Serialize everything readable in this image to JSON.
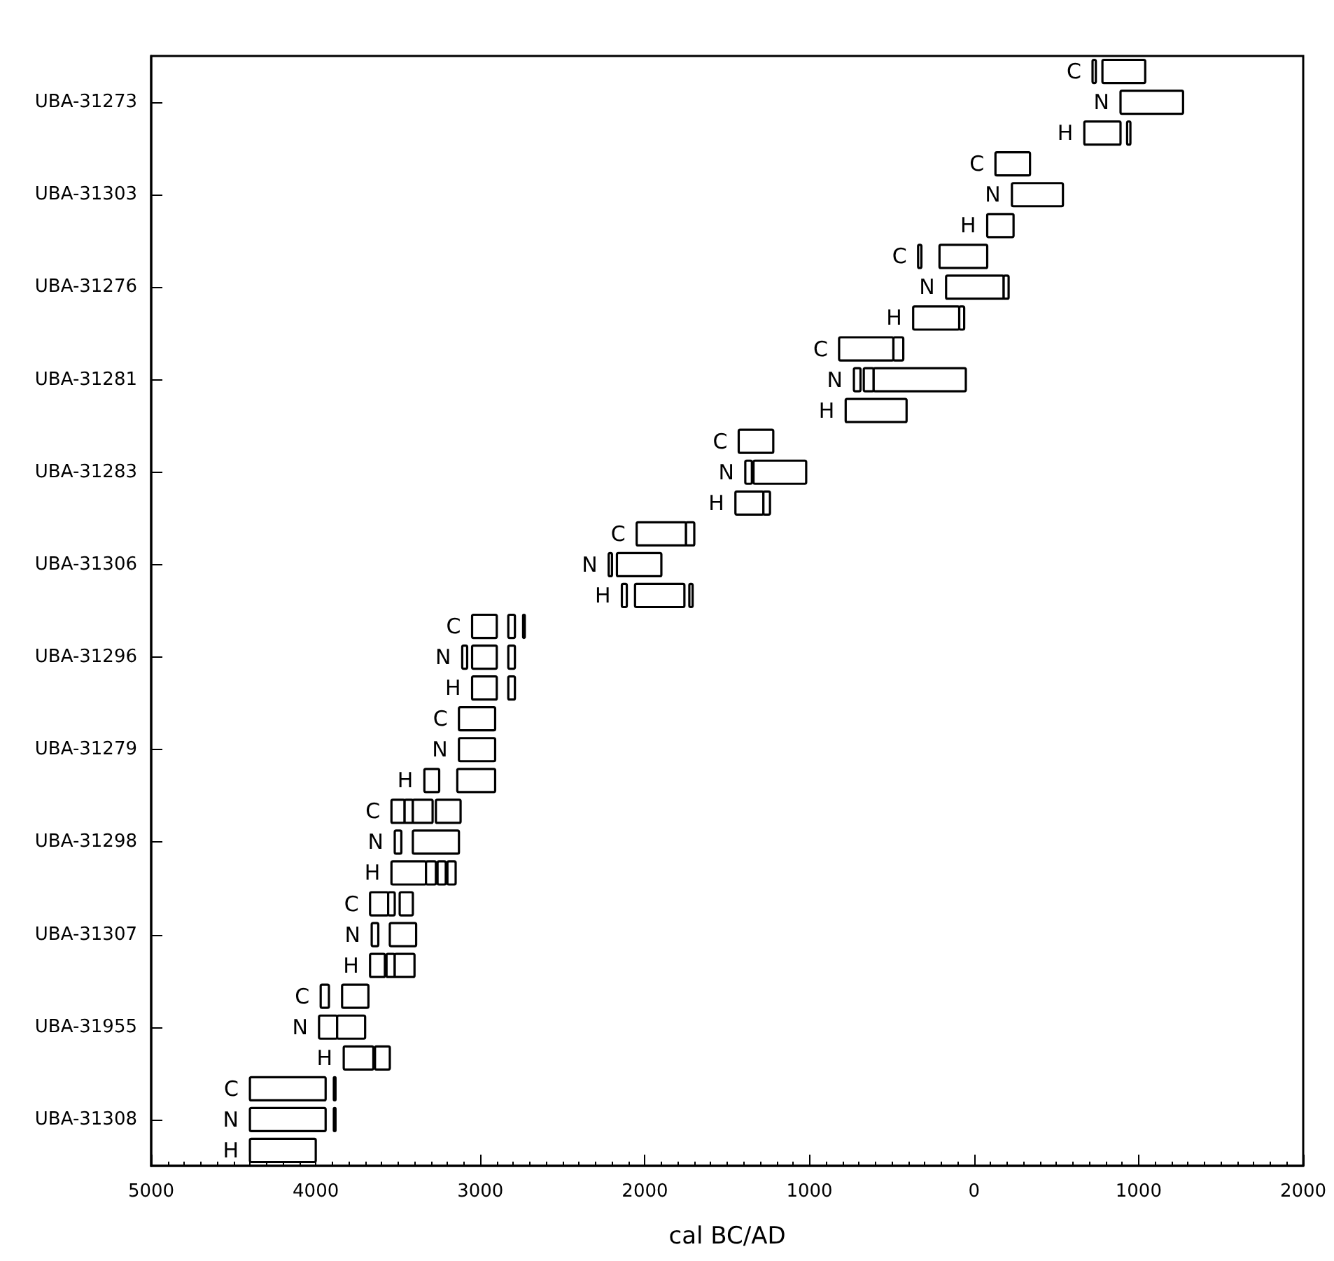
{
  "chart_data": {
    "type": "bar",
    "orientation": "horizontal",
    "xlabel": "cal BC/AD",
    "categories": [
      "UBA-31273",
      "UBA-31303",
      "UBA-31276",
      "UBA-31281",
      "UBA-31283",
      "UBA-31306",
      "UBA-31296",
      "UBA-31279",
      "UBA-31298",
      "UBA-31307",
      "UBA-31955",
      "UBA-31308"
    ],
    "xlim": [
      -5000,
      2000
    ],
    "xticks": [
      {
        "value": -5000,
        "label": "5000"
      },
      {
        "value": -4000,
        "label": "4000"
      },
      {
        "value": -3000,
        "label": "3000"
      },
      {
        "value": -2000,
        "label": "2000"
      },
      {
        "value": -1000,
        "label": "1000"
      },
      {
        "value": 0,
        "label": "0"
      },
      {
        "value": 1000,
        "label": "1000"
      },
      {
        "value": 2000,
        "label": "2000"
      }
    ],
    "series": [
      {
        "name": "C",
        "color": "#ffffff",
        "base": [
          720,
          130,
          -340,
          -820,
          -1430,
          -2050,
          -3050,
          -3130,
          -3540,
          -3670,
          -3970,
          -4400
        ],
        "values": [
          20,
          210,
          20,
          330,
          210,
          300,
          150,
          220,
          80,
          110,
          50,
          460
        ]
      },
      {
        "color": "#ffffff",
        "base": [
          780,
          null,
          -210,
          -490,
          null,
          -1750,
          -2830,
          null,
          -3460,
          -3560,
          -3840,
          -3890
        ],
        "values": [
          260,
          null,
          290,
          60,
          null,
          50,
          40,
          null,
          50,
          40,
          160,
          10
        ]
      },
      {
        "color": "#ffffff",
        "base": [
          null,
          null,
          null,
          null,
          null,
          null,
          -2740,
          null,
          -3410,
          -3490,
          null,
          null
        ],
        "values": [
          null,
          null,
          null,
          null,
          null,
          null,
          10,
          null,
          120,
          80,
          null,
          null
        ]
      },
      {
        "color": "#ffffff",
        "base": [
          null,
          null,
          null,
          null,
          null,
          null,
          null,
          null,
          -3270,
          null,
          null,
          null
        ],
        "values": [
          null,
          null,
          null,
          null,
          null,
          null,
          null,
          null,
          150,
          null,
          null,
          null
        ]
      },
      {
        "name": "N",
        "color": "#ffffff",
        "base": [
          890,
          230,
          -170,
          -730,
          -1390,
          -2220,
          -3110,
          -3130,
          -3520,
          -3660,
          -3980,
          -4400
        ],
        "values": [
          380,
          310,
          350,
          40,
          40,
          20,
          30,
          220,
          40,
          40,
          110,
          460
        ]
      },
      {
        "color": "#ffffff",
        "base": [
          null,
          null,
          180,
          -670,
          -1340,
          -2170,
          -3050,
          null,
          -3410,
          -3550,
          -3870,
          -3890
        ],
        "values": [
          null,
          null,
          30,
          60,
          320,
          270,
          150,
          null,
          280,
          160,
          170,
          10
        ]
      },
      {
        "color": "#ffffff",
        "base": [
          null,
          null,
          null,
          -610,
          null,
          null,
          -2830,
          null,
          null,
          null,
          null,
          null
        ],
        "values": [
          null,
          null,
          null,
          560,
          null,
          null,
          40,
          null,
          null,
          null,
          null,
          null
        ]
      },
      {
        "name": "H",
        "color": "#ffffff",
        "base": [
          670,
          80,
          -370,
          -780,
          -1450,
          -2140,
          -3050,
          -3340,
          -3540,
          -3670,
          -3830,
          -4400
        ],
        "values": [
          220,
          160,
          280,
          370,
          170,
          30,
          150,
          90,
          210,
          90,
          180,
          400
        ]
      },
      {
        "color": "#ffffff",
        "base": [
          930,
          null,
          -90,
          null,
          -1280,
          -2060,
          -2830,
          -3140,
          -3330,
          -3570,
          -3640,
          null
        ],
        "values": [
          20,
          null,
          30,
          null,
          40,
          300,
          40,
          230,
          60,
          50,
          90,
          null
        ]
      },
      {
        "color": "#ffffff",
        "base": [
          null,
          null,
          null,
          null,
          null,
          -1730,
          null,
          null,
          -3260,
          -3520,
          null,
          null
        ],
        "values": [
          null,
          null,
          null,
          null,
          null,
          20,
          null,
          null,
          50,
          120,
          null,
          null
        ]
      },
      {
        "color": "#ffffff",
        "base": [
          null,
          null,
          null,
          null,
          null,
          null,
          null,
          null,
          -3200,
          null,
          null,
          null
        ],
        "values": [
          null,
          null,
          null,
          null,
          null,
          null,
          null,
          null,
          50,
          null,
          null,
          null
        ]
      }
    ]
  }
}
